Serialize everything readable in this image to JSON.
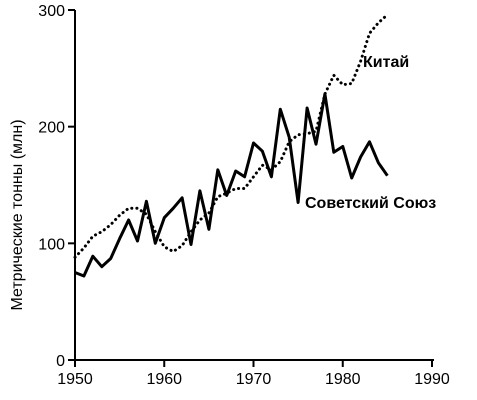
{
  "chart_data": {
    "type": "line",
    "ylabel": "Метрические тонны (млн)",
    "xlim": [
      1950,
      1990
    ],
    "ylim": [
      0,
      300
    ],
    "x_ticks": [
      "1950",
      "1960",
      "1970",
      "1980",
      "1990"
    ],
    "y_ticks": [
      "0",
      "100",
      "200",
      "300"
    ],
    "grid": false,
    "legend": "direct labels on lines",
    "series": [
      {
        "name": "Китай",
        "style": "dotted",
        "color": "#000000",
        "x": [
          1950,
          1951,
          1952,
          1953,
          1954,
          1955,
          1956,
          1957,
          1958,
          1959,
          1960,
          1961,
          1962,
          1963,
          1964,
          1965,
          1966,
          1967,
          1968,
          1969,
          1970,
          1971,
          1972,
          1973,
          1974,
          1975,
          1976,
          1977,
          1978,
          1979,
          1980,
          1981,
          1982,
          1983,
          1984,
          1985
        ],
        "values": [
          88,
          96,
          106,
          110,
          116,
          124,
          130,
          130,
          125,
          110,
          97,
          93,
          98,
          110,
          120,
          126,
          140,
          143,
          147,
          147,
          157,
          167,
          163,
          170,
          187,
          193,
          194,
          196,
          228,
          244,
          236,
          237,
          256,
          280,
          289,
          296
        ]
      },
      {
        "name": "Советский Союз",
        "style": "solid",
        "color": "#000000",
        "x": [
          1950,
          1951,
          1952,
          1953,
          1954,
          1955,
          1956,
          1957,
          1958,
          1959,
          1960,
          1961,
          1962,
          1963,
          1964,
          1965,
          1966,
          1967,
          1968,
          1969,
          1970,
          1971,
          1972,
          1973,
          1974,
          1975,
          1976,
          1977,
          1978,
          1979,
          1980,
          1981,
          1982,
          1983,
          1984,
          1985
        ],
        "values": [
          75,
          72,
          89,
          80,
          87,
          104,
          120,
          102,
          136,
          100,
          122,
          130,
          139,
          99,
          145,
          112,
          163,
          141,
          162,
          157,
          186,
          179,
          157,
          215,
          191,
          135,
          216,
          185,
          228,
          178,
          183,
          156,
          174,
          187,
          169,
          158
        ]
      }
    ]
  }
}
